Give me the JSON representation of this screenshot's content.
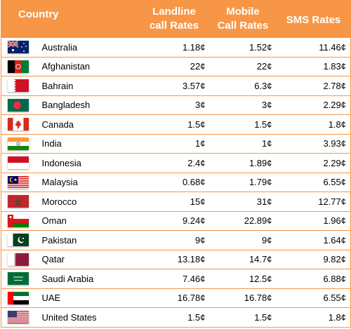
{
  "header": {
    "country": "Country",
    "landline_1": "Landline",
    "landline_2": "call Rates",
    "mobile_1": "Mobile",
    "mobile_2": "Call Rates",
    "sms": "SMS Rates"
  },
  "rows": [
    {
      "country": "Australia",
      "landline": "1.18¢",
      "mobile": "1.52¢",
      "sms": "11.46¢",
      "flag": "australia-flag"
    },
    {
      "country": "Afghanistan",
      "landline": "22¢",
      "mobile": "22¢",
      "sms": "1.83¢",
      "flag": "afghanistan-flag"
    },
    {
      "country": "Bahrain",
      "landline": "3.57¢",
      "mobile": "6.3¢",
      "sms": "2.78¢",
      "flag": "bahrain-flag"
    },
    {
      "country": "Bangladesh",
      "landline": "3¢",
      "mobile": "3¢",
      "sms": "2.29¢",
      "flag": "bangladesh-flag"
    },
    {
      "country": "Canada",
      "landline": "1.5¢",
      "mobile": "1.5¢",
      "sms": "1.8¢",
      "flag": "canada-flag"
    },
    {
      "country": "India",
      "landline": "1¢",
      "mobile": "1¢",
      "sms": "3.93¢",
      "flag": "india-flag"
    },
    {
      "country": "Indonesia",
      "landline": "2.4¢",
      "mobile": "1.89¢",
      "sms": "2.29¢",
      "flag": "indonesia-flag"
    },
    {
      "country": "Malaysia",
      "landline": "0.68¢",
      "mobile": "1.79¢",
      "sms": "6.55¢",
      "flag": "malaysia-flag"
    },
    {
      "country": "Morocco",
      "landline": "15¢",
      "mobile": "31¢",
      "sms": "12.77¢",
      "flag": "morocco-flag"
    },
    {
      "country": "Oman",
      "landline": "9.24¢",
      "mobile": "22.89¢",
      "sms": "1.96¢",
      "flag": "oman-flag"
    },
    {
      "country": "Pakistan",
      "landline": "9¢",
      "mobile": "9¢",
      "sms": "1.64¢",
      "flag": "pakistan-flag"
    },
    {
      "country": "Qatar",
      "landline": "13.18¢",
      "mobile": "14.7¢",
      "sms": "9.82¢",
      "flag": "qatar-flag"
    },
    {
      "country": "Saudi Arabia",
      "landline": "7.46¢",
      "mobile": "12.5¢",
      "sms": "6.88¢",
      "flag": "saudi-arabia-flag"
    },
    {
      "country": "UAE",
      "landline": "16.78¢",
      "mobile": "16.78¢",
      "sms": "6.55¢",
      "flag": "uae-flag"
    },
    {
      "country": "United States",
      "landline": "1.5¢",
      "mobile": "1.5¢",
      "sms": "1.8¢",
      "flag": "united-states-flag"
    }
  ],
  "colors": {
    "header_bg": "#f79646",
    "border": "#f79646",
    "header_text": "#ffffff"
  }
}
